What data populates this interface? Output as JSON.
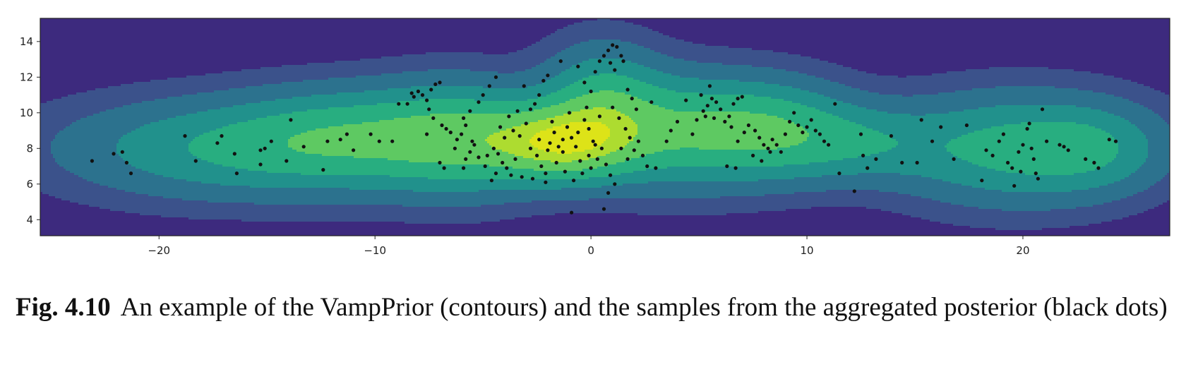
{
  "caption": {
    "label": "Fig. 4.10",
    "text": "An example of the VampPrior (contours) and the samples from the aggregated posterior (black dots)"
  },
  "chart_data": {
    "type": "scatter",
    "title": "",
    "xlabel": "",
    "ylabel": "",
    "xlim": [
      -25.5,
      26.8
    ],
    "ylim": [
      3.1,
      15.3
    ],
    "xticks": [
      -20,
      -10,
      0,
      10,
      20
    ],
    "yticks": [
      4,
      6,
      8,
      10,
      12,
      14
    ],
    "grid": false,
    "legend": "none",
    "background": "contour",
    "contour_colors": [
      "#3d2a7e",
      "#3b528b",
      "#2c728e",
      "#21918c",
      "#28ae80",
      "#5ec962",
      "#addc30",
      "#dde318"
    ],
    "point_color": "#111111",
    "contour_components": [
      {
        "x": -17,
        "y": 8.0,
        "sx": 5.0,
        "sy": 1.8,
        "w": 0.4
      },
      {
        "x": -11,
        "y": 8.6,
        "sx": 3.5,
        "sy": 1.8,
        "w": 0.45
      },
      {
        "x": -6,
        "y": 8.6,
        "sx": 2.6,
        "sy": 2.0,
        "w": 0.55
      },
      {
        "x": -1.5,
        "y": 8.3,
        "sx": 2.2,
        "sy": 1.4,
        "w": 0.85
      },
      {
        "x": 0.5,
        "y": 10.5,
        "sx": 1.8,
        "sy": 2.1,
        "w": 0.45
      },
      {
        "x": 4,
        "y": 9.0,
        "sx": 2.8,
        "sy": 2.0,
        "w": 0.55
      },
      {
        "x": 8.5,
        "y": 9.0,
        "sx": 2.5,
        "sy": 1.8,
        "w": 0.5
      },
      {
        "x": 12.5,
        "y": 8.3,
        "sx": 2.5,
        "sy": 1.4,
        "w": 0.28
      },
      {
        "x": 19.5,
        "y": 8.0,
        "sx": 3.6,
        "sy": 2.0,
        "w": 0.48
      },
      {
        "x": 23.5,
        "y": 8.0,
        "sx": 2.2,
        "sy": 1.6,
        "w": 0.25
      }
    ],
    "points": [
      [
        -23.1,
        7.3
      ],
      [
        -22.1,
        7.7
      ],
      [
        -21.7,
        7.8
      ],
      [
        -21.5,
        7.2
      ],
      [
        -21.3,
        6.6
      ],
      [
        -18.8,
        8.7
      ],
      [
        -18.3,
        7.3
      ],
      [
        -17.3,
        8.3
      ],
      [
        -17.1,
        8.7
      ],
      [
        -16.4,
        6.6
      ],
      [
        -16.5,
        7.7
      ],
      [
        -15.3,
        7.1
      ],
      [
        -15.3,
        7.9
      ],
      [
        -15.1,
        8.0
      ],
      [
        -14.8,
        8.4
      ],
      [
        -14.1,
        7.3
      ],
      [
        -13.9,
        9.6
      ],
      [
        -13.3,
        8.1
      ],
      [
        -12.4,
        6.8
      ],
      [
        -12.2,
        8.4
      ],
      [
        -11.6,
        8.5
      ],
      [
        -11.3,
        8.8
      ],
      [
        -11.0,
        7.9
      ],
      [
        -10.2,
        8.8
      ],
      [
        -9.8,
        8.4
      ],
      [
        -9.2,
        8.4
      ],
      [
        -8.9,
        10.5
      ],
      [
        -8.5,
        10.5
      ],
      [
        -8.3,
        11.1
      ],
      [
        -8.2,
        10.9
      ],
      [
        -8.0,
        11.2
      ],
      [
        -7.8,
        11.0
      ],
      [
        -7.6,
        10.7
      ],
      [
        -7.4,
        11.3
      ],
      [
        -7.2,
        11.6
      ],
      [
        -7.0,
        11.7
      ],
      [
        -7.5,
        10.2
      ],
      [
        -7.3,
        9.7
      ],
      [
        -7.6,
        8.8
      ],
      [
        -6.9,
        9.3
      ],
      [
        -6.7,
        9.1
      ],
      [
        -6.5,
        8.9
      ],
      [
        -6.2,
        8.5
      ],
      [
        -7.0,
        7.2
      ],
      [
        -6.8,
        6.9
      ],
      [
        -6.0,
        8.8
      ],
      [
        -5.8,
        9.3
      ],
      [
        -5.6,
        10.1
      ],
      [
        -5.9,
        9.7
      ],
      [
        -5.2,
        10.6
      ],
      [
        -5.0,
        11.0
      ],
      [
        -4.7,
        11.5
      ],
      [
        -4.4,
        12.0
      ],
      [
        -5.4,
        8.2
      ],
      [
        -5.6,
        7.8
      ],
      [
        -5.2,
        7.5
      ],
      [
        -5.8,
        7.4
      ],
      [
        -4.9,
        7.0
      ],
      [
        -4.8,
        7.6
      ],
      [
        -4.5,
        8.0
      ],
      [
        -4.3,
        7.7
      ],
      [
        -4.1,
        7.2
      ],
      [
        -3.9,
        6.9
      ],
      [
        -3.7,
        6.5
      ],
      [
        -4.0,
        8.6
      ],
      [
        -3.6,
        9.0
      ],
      [
        -3.3,
        8.7
      ],
      [
        -3.0,
        9.4
      ],
      [
        -2.8,
        10.2
      ],
      [
        -2.6,
        10.5
      ],
      [
        -2.4,
        11.0
      ],
      [
        -2.2,
        11.8
      ],
      [
        -2.0,
        12.1
      ],
      [
        -3.1,
        11.5
      ],
      [
        -3.4,
        10.1
      ],
      [
        -2.8,
        8.0
      ],
      [
        -2.5,
        7.6
      ],
      [
        -2.3,
        7.0
      ],
      [
        -2.1,
        6.6
      ],
      [
        -2.7,
        6.3
      ],
      [
        -1.9,
        8.3
      ],
      [
        -1.7,
        8.9
      ],
      [
        -1.5,
        8.1
      ],
      [
        -1.3,
        7.8
      ],
      [
        -1.1,
        9.2
      ],
      [
        -0.9,
        8.6
      ],
      [
        -0.7,
        8.1
      ],
      [
        -0.5,
        7.3
      ],
      [
        -0.3,
        9.6
      ],
      [
        -0.1,
        9.1
      ],
      [
        0.1,
        8.4
      ],
      [
        -1.6,
        7.2
      ],
      [
        -1.2,
        6.7
      ],
      [
        -0.8,
        6.2
      ],
      [
        -0.4,
        6.6
      ],
      [
        0.0,
        6.9
      ],
      [
        0.3,
        7.4
      ],
      [
        0.5,
        8.0
      ],
      [
        0.7,
        7.1
      ],
      [
        0.9,
        6.5
      ],
      [
        1.1,
        6.0
      ],
      [
        0.8,
        5.5
      ],
      [
        0.6,
        4.6
      ],
      [
        -0.9,
        4.4
      ],
      [
        -1.4,
        12.9
      ],
      [
        -0.6,
        12.6
      ],
      [
        -0.3,
        11.7
      ],
      [
        0.0,
        11.2
      ],
      [
        0.2,
        12.3
      ],
      [
        0.4,
        12.9
      ],
      [
        0.6,
        13.2
      ],
      [
        0.8,
        13.5
      ],
      [
        1.0,
        13.8
      ],
      [
        1.2,
        13.7
      ],
      [
        1.4,
        13.2
      ],
      [
        0.9,
        12.8
      ],
      [
        1.1,
        12.4
      ],
      [
        1.5,
        12.9
      ],
      [
        1.7,
        11.3
      ],
      [
        1.9,
        10.8
      ],
      [
        2.1,
        10.2
      ],
      [
        1.3,
        9.7
      ],
      [
        1.6,
        9.1
      ],
      [
        1.8,
        8.6
      ],
      [
        2.0,
        7.9
      ],
      [
        2.2,
        8.4
      ],
      [
        2.4,
        7.6
      ],
      [
        2.6,
        7.0
      ],
      [
        3.0,
        6.9
      ],
      [
        2.8,
        10.6
      ],
      [
        -2.1,
        6.1
      ],
      [
        -3.2,
        6.4
      ],
      [
        -4.6,
        6.2
      ],
      [
        -5.9,
        6.9
      ],
      [
        -6.3,
        8.0
      ],
      [
        -5.5,
        8.4
      ],
      [
        -4.2,
        9.2
      ],
      [
        -3.8,
        9.8
      ],
      [
        -1.0,
        10.0
      ],
      [
        -0.2,
        10.3
      ],
      [
        0.4,
        9.8
      ],
      [
        1.0,
        10.3
      ],
      [
        1.4,
        8.0
      ],
      [
        1.7,
        7.4
      ],
      [
        -1.8,
        9.5
      ],
      [
        -2.4,
        8.5
      ],
      [
        -3.5,
        7.4
      ],
      [
        -4.4,
        6.6
      ],
      [
        -0.6,
        8.9
      ],
      [
        0.2,
        8.2
      ],
      [
        -1.3,
        8.5
      ],
      [
        -2.0,
        7.9
      ],
      [
        -0.1,
        7.6
      ],
      [
        3.5,
        8.4
      ],
      [
        3.7,
        9.0
      ],
      [
        4.0,
        9.5
      ],
      [
        4.4,
        10.7
      ],
      [
        4.7,
        8.8
      ],
      [
        4.9,
        9.6
      ],
      [
        5.2,
        10.1
      ],
      [
        5.4,
        10.4
      ],
      [
        5.6,
        10.8
      ],
      [
        5.1,
        11.0
      ],
      [
        5.5,
        11.5
      ],
      [
        5.8,
        10.6
      ],
      [
        6.0,
        10.2
      ],
      [
        5.3,
        9.8
      ],
      [
        5.7,
        9.7
      ],
      [
        6.2,
        9.5
      ],
      [
        6.4,
        9.8
      ],
      [
        6.6,
        10.5
      ],
      [
        6.8,
        10.8
      ],
      [
        7.0,
        10.9
      ],
      [
        6.5,
        9.2
      ],
      [
        6.8,
        8.4
      ],
      [
        7.1,
        8.9
      ],
      [
        7.3,
        9.3
      ],
      [
        7.6,
        9.0
      ],
      [
        7.8,
        8.6
      ],
      [
        8.0,
        8.2
      ],
      [
        8.2,
        8.0
      ],
      [
        8.4,
        8.5
      ],
      [
        8.6,
        8.2
      ],
      [
        8.8,
        7.8
      ],
      [
        7.5,
        7.6
      ],
      [
        7.9,
        7.3
      ],
      [
        8.3,
        7.8
      ],
      [
        6.3,
        7.0
      ],
      [
        6.7,
        6.9
      ],
      [
        9.0,
        8.8
      ],
      [
        9.2,
        9.5
      ],
      [
        9.4,
        10.0
      ],
      [
        9.6,
        9.3
      ],
      [
        9.8,
        8.9
      ],
      [
        10.0,
        9.2
      ],
      [
        10.2,
        9.6
      ],
      [
        10.4,
        9.0
      ],
      [
        10.6,
        8.8
      ],
      [
        10.8,
        8.4
      ],
      [
        11.0,
        8.2
      ],
      [
        11.3,
        10.5
      ],
      [
        11.5,
        6.6
      ],
      [
        12.2,
        5.6
      ],
      [
        12.5,
        8.8
      ],
      [
        12.6,
        7.6
      ],
      [
        12.8,
        6.9
      ],
      [
        13.2,
        7.4
      ],
      [
        13.9,
        8.7
      ],
      [
        14.4,
        7.2
      ],
      [
        15.1,
        7.2
      ],
      [
        15.3,
        9.6
      ],
      [
        15.8,
        8.4
      ],
      [
        16.2,
        9.2
      ],
      [
        16.8,
        7.4
      ],
      [
        17.4,
        9.3
      ],
      [
        18.1,
        6.2
      ],
      [
        18.6,
        7.6
      ],
      [
        18.9,
        8.4
      ],
      [
        19.1,
        8.8
      ],
      [
        19.3,
        7.2
      ],
      [
        19.5,
        6.9
      ],
      [
        19.6,
        5.9
      ],
      [
        19.8,
        7.8
      ],
      [
        20.0,
        8.2
      ],
      [
        20.2,
        9.1
      ],
      [
        20.3,
        9.4
      ],
      [
        20.4,
        8.0
      ],
      [
        20.5,
        7.4
      ],
      [
        20.6,
        6.6
      ],
      [
        20.9,
        10.2
      ],
      [
        21.1,
        8.4
      ],
      [
        21.7,
        8.2
      ],
      [
        21.9,
        8.1
      ],
      [
        22.1,
        7.9
      ],
      [
        22.9,
        7.4
      ],
      [
        23.3,
        7.2
      ],
      [
        23.5,
        6.9
      ],
      [
        24.0,
        8.5
      ],
      [
        24.3,
        8.4
      ],
      [
        19.9,
        6.7
      ],
      [
        20.7,
        6.3
      ],
      [
        18.3,
        7.9
      ]
    ]
  }
}
